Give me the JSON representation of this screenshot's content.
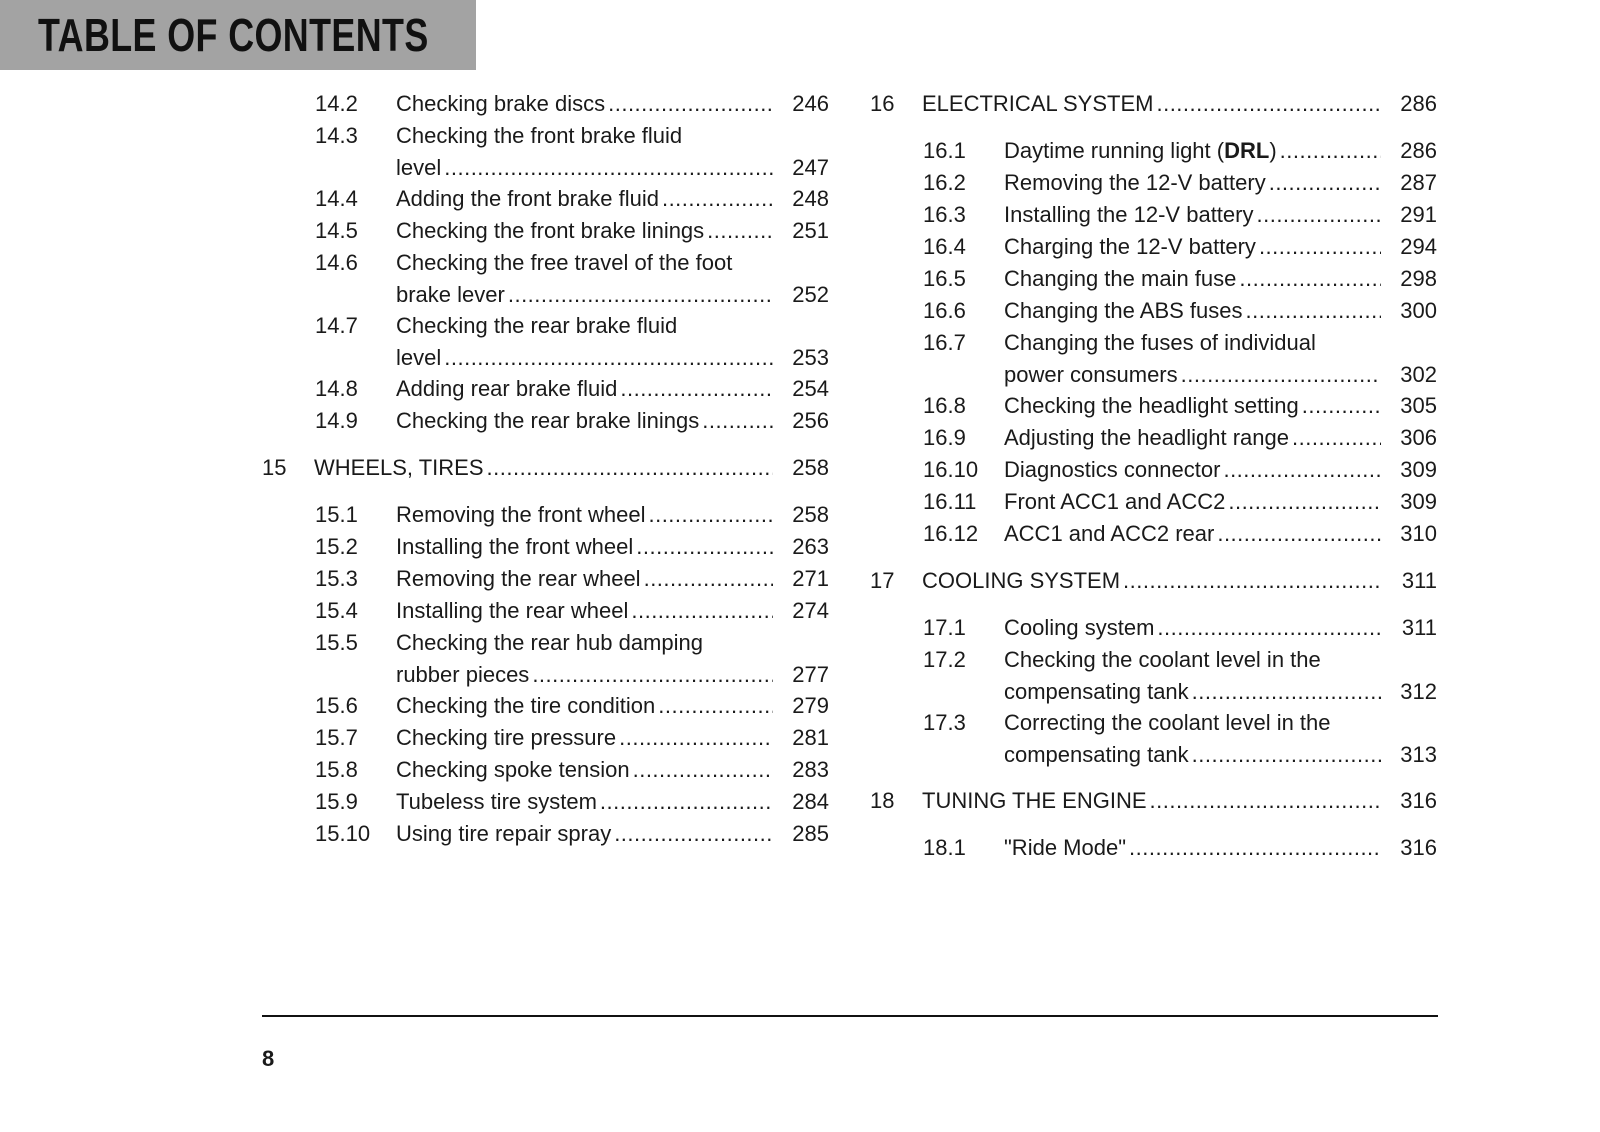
{
  "header": {
    "title": "TABLE OF CONTENTS",
    "background": "#a3a3a3"
  },
  "columns": [
    {
      "entries": [
        {
          "num": "14.2",
          "lines": [
            "Checking brake discs"
          ],
          "page": "246",
          "tool": false,
          "level": "sub"
        },
        {
          "num": "14.3",
          "lines": [
            "Checking the front brake fluid",
            "level"
          ],
          "page": "247",
          "tool": false,
          "level": "sub"
        },
        {
          "num": "14.4",
          "lines": [
            "Adding the front brake fluid"
          ],
          "page": "248",
          "tool": true,
          "level": "sub"
        },
        {
          "num": "14.5",
          "lines": [
            "Checking the front brake linings"
          ],
          "page": "251",
          "tool": false,
          "level": "sub"
        },
        {
          "num": "14.6",
          "lines": [
            "Checking the free travel of the foot",
            "brake lever"
          ],
          "page": "252",
          "tool": false,
          "level": "sub"
        },
        {
          "num": "14.7",
          "lines": [
            "Checking the rear brake fluid",
            "level"
          ],
          "page": "253",
          "tool": false,
          "level": "sub"
        },
        {
          "num": "14.8",
          "lines": [
            "Adding rear brake fluid"
          ],
          "page": "254",
          "tool": true,
          "level": "sub"
        },
        {
          "num": "14.9",
          "lines": [
            "Checking the rear brake linings"
          ],
          "page": "256",
          "tool": false,
          "level": "sub"
        },
        {
          "num": "15",
          "lines": [
            "WHEELS, TIRES"
          ],
          "page": "258",
          "tool": false,
          "level": "chapter"
        },
        {
          "num": "15.1",
          "lines": [
            "Removing the front wheel"
          ],
          "page": "258",
          "tool": true,
          "level": "sub"
        },
        {
          "num": "15.2",
          "lines": [
            "Installing the front wheel"
          ],
          "page": "263",
          "tool": true,
          "level": "sub"
        },
        {
          "num": "15.3",
          "lines": [
            "Removing the rear wheel"
          ],
          "page": "271",
          "tool": true,
          "level": "sub"
        },
        {
          "num": "15.4",
          "lines": [
            "Installing the rear wheel"
          ],
          "page": "274",
          "tool": true,
          "level": "sub"
        },
        {
          "num": "15.5",
          "lines": [
            "Checking the rear hub damping",
            "rubber pieces"
          ],
          "page": "277",
          "tool": true,
          "level": "sub"
        },
        {
          "num": "15.6",
          "lines": [
            "Checking the tire condition"
          ],
          "page": "279",
          "tool": false,
          "level": "sub"
        },
        {
          "num": "15.7",
          "lines": [
            "Checking tire pressure"
          ],
          "page": "281",
          "tool": false,
          "level": "sub"
        },
        {
          "num": "15.8",
          "lines": [
            "Checking spoke tension"
          ],
          "page": "283",
          "tool": false,
          "level": "sub"
        },
        {
          "num": "15.9",
          "lines": [
            "Tubeless tire system"
          ],
          "page": "284",
          "tool": false,
          "level": "sub"
        },
        {
          "num": "15.10",
          "lines": [
            "Using tire repair spray"
          ],
          "page": "285",
          "tool": false,
          "level": "sub"
        }
      ]
    },
    {
      "entries": [
        {
          "num": "16",
          "lines": [
            "ELECTRICAL SYSTEM"
          ],
          "page": "286",
          "tool": false,
          "level": "chapter"
        },
        {
          "num": "16.1",
          "lines": [
            "Daytime running light (DRL)"
          ],
          "bold_term": "DRL",
          "page": "286",
          "tool": false,
          "level": "sub"
        },
        {
          "num": "16.2",
          "lines": [
            "Removing the 12-V battery"
          ],
          "page": "287",
          "tool": true,
          "level": "sub"
        },
        {
          "num": "16.3",
          "lines": [
            "Installing the 12-V battery"
          ],
          "page": "291",
          "tool": true,
          "level": "sub"
        },
        {
          "num": "16.4",
          "lines": [
            "Charging the 12-V battery"
          ],
          "page": "294",
          "tool": true,
          "level": "sub"
        },
        {
          "num": "16.5",
          "lines": [
            "Changing the main fuse"
          ],
          "page": "298",
          "tool": false,
          "level": "sub"
        },
        {
          "num": "16.6",
          "lines": [
            "Changing the ABS fuses"
          ],
          "page": "300",
          "tool": false,
          "level": "sub"
        },
        {
          "num": "16.7",
          "lines": [
            "Changing the fuses of individual",
            "power consumers"
          ],
          "page": "302",
          "tool": false,
          "level": "sub"
        },
        {
          "num": "16.8",
          "lines": [
            "Checking the headlight setting"
          ],
          "page": "305",
          "tool": false,
          "level": "sub"
        },
        {
          "num": "16.9",
          "lines": [
            "Adjusting the headlight range"
          ],
          "page": "306",
          "tool": false,
          "level": "sub"
        },
        {
          "num": "16.10",
          "lines": [
            "Diagnostics connector"
          ],
          "page": "309",
          "tool": false,
          "level": "sub"
        },
        {
          "num": "16.11",
          "lines": [
            "Front ACC1 and ACC2"
          ],
          "page": "309",
          "tool": false,
          "level": "sub"
        },
        {
          "num": "16.12",
          "lines": [
            "ACC1 and ACC2 rear"
          ],
          "page": "310",
          "tool": false,
          "level": "sub"
        },
        {
          "num": "17",
          "lines": [
            "COOLING SYSTEM"
          ],
          "page": "311",
          "tool": false,
          "level": "chapter"
        },
        {
          "num": "17.1",
          "lines": [
            "Cooling system"
          ],
          "page": "311",
          "tool": false,
          "level": "sub"
        },
        {
          "num": "17.2",
          "lines": [
            "Checking the coolant level in the",
            "compensating tank"
          ],
          "page": "312",
          "tool": false,
          "level": "sub"
        },
        {
          "num": "17.3",
          "lines": [
            "Correcting the coolant level in the",
            "compensating tank"
          ],
          "page": "313",
          "tool": false,
          "level": "sub"
        },
        {
          "num": "18",
          "lines": [
            "TUNING THE ENGINE"
          ],
          "page": "316",
          "tool": false,
          "level": "chapter"
        },
        {
          "num": "18.1",
          "lines": [
            "\"Ride Mode\""
          ],
          "page": "316",
          "tool": false,
          "level": "sub"
        }
      ]
    }
  ],
  "tool_icon": "wrench-icon",
  "footer": {
    "page_number": "8"
  }
}
